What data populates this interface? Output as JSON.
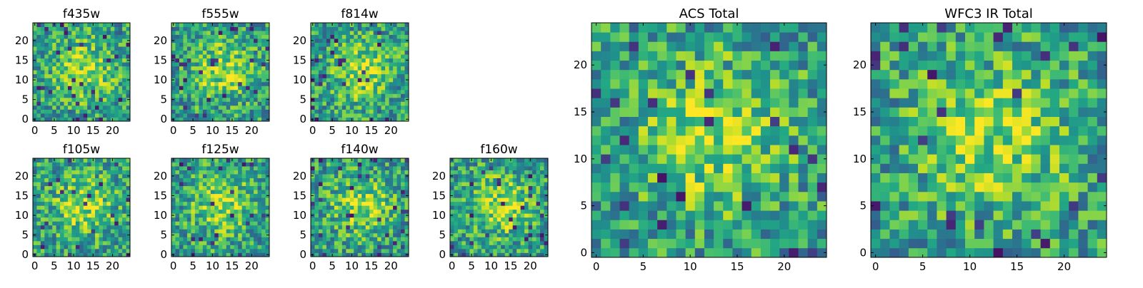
{
  "chart_data": [
    {
      "type": "heatmap",
      "title": "f435w",
      "grid_size": 25,
      "x_ticks": [
        0,
        5,
        10,
        15,
        20
      ],
      "y_ticks": [
        0,
        5,
        10,
        15,
        20
      ],
      "colormap": "viridis",
      "seed": 11
    },
    {
      "type": "heatmap",
      "title": "f555w",
      "grid_size": 25,
      "x_ticks": [
        0,
        5,
        10,
        15,
        20
      ],
      "y_ticks": [
        0,
        5,
        10,
        15,
        20
      ],
      "colormap": "viridis",
      "seed": 23
    },
    {
      "type": "heatmap",
      "title": "f814w",
      "grid_size": 25,
      "x_ticks": [
        0,
        5,
        10,
        15,
        20
      ],
      "y_ticks": [
        0,
        5,
        10,
        15,
        20
      ],
      "colormap": "viridis",
      "seed": 37
    },
    {
      "type": "heatmap",
      "title": "f105w",
      "grid_size": 25,
      "x_ticks": [
        0,
        5,
        10,
        15,
        20
      ],
      "y_ticks": [
        0,
        5,
        10,
        15,
        20
      ],
      "colormap": "viridis",
      "seed": 41
    },
    {
      "type": "heatmap",
      "title": "f125w",
      "grid_size": 25,
      "x_ticks": [
        0,
        5,
        10,
        15,
        20
      ],
      "y_ticks": [
        0,
        5,
        10,
        15,
        20
      ],
      "colormap": "viridis",
      "seed": 53
    },
    {
      "type": "heatmap",
      "title": "f140w",
      "grid_size": 25,
      "x_ticks": [
        0,
        5,
        10,
        15,
        20
      ],
      "y_ticks": [
        0,
        5,
        10,
        15,
        20
      ],
      "colormap": "viridis",
      "seed": 67
    },
    {
      "type": "heatmap",
      "title": "f160w",
      "grid_size": 25,
      "x_ticks": [
        0,
        5,
        10,
        15,
        20
      ],
      "y_ticks": [
        0,
        5,
        10,
        15,
        20
      ],
      "colormap": "viridis",
      "seed": 79
    },
    {
      "type": "heatmap",
      "title": "ACS Total",
      "grid_size": 25,
      "x_ticks": [
        0,
        5,
        10,
        15,
        20
      ],
      "y_ticks": [
        0,
        5,
        10,
        15,
        20
      ],
      "colormap": "viridis",
      "seed": 83
    },
    {
      "type": "heatmap",
      "title": "WFC3 IR Total",
      "grid_size": 25,
      "x_ticks": [
        0,
        5,
        10,
        15,
        20
      ],
      "y_ticks": [
        0,
        5,
        10,
        15,
        20
      ],
      "colormap": "viridis",
      "seed": 97
    }
  ]
}
